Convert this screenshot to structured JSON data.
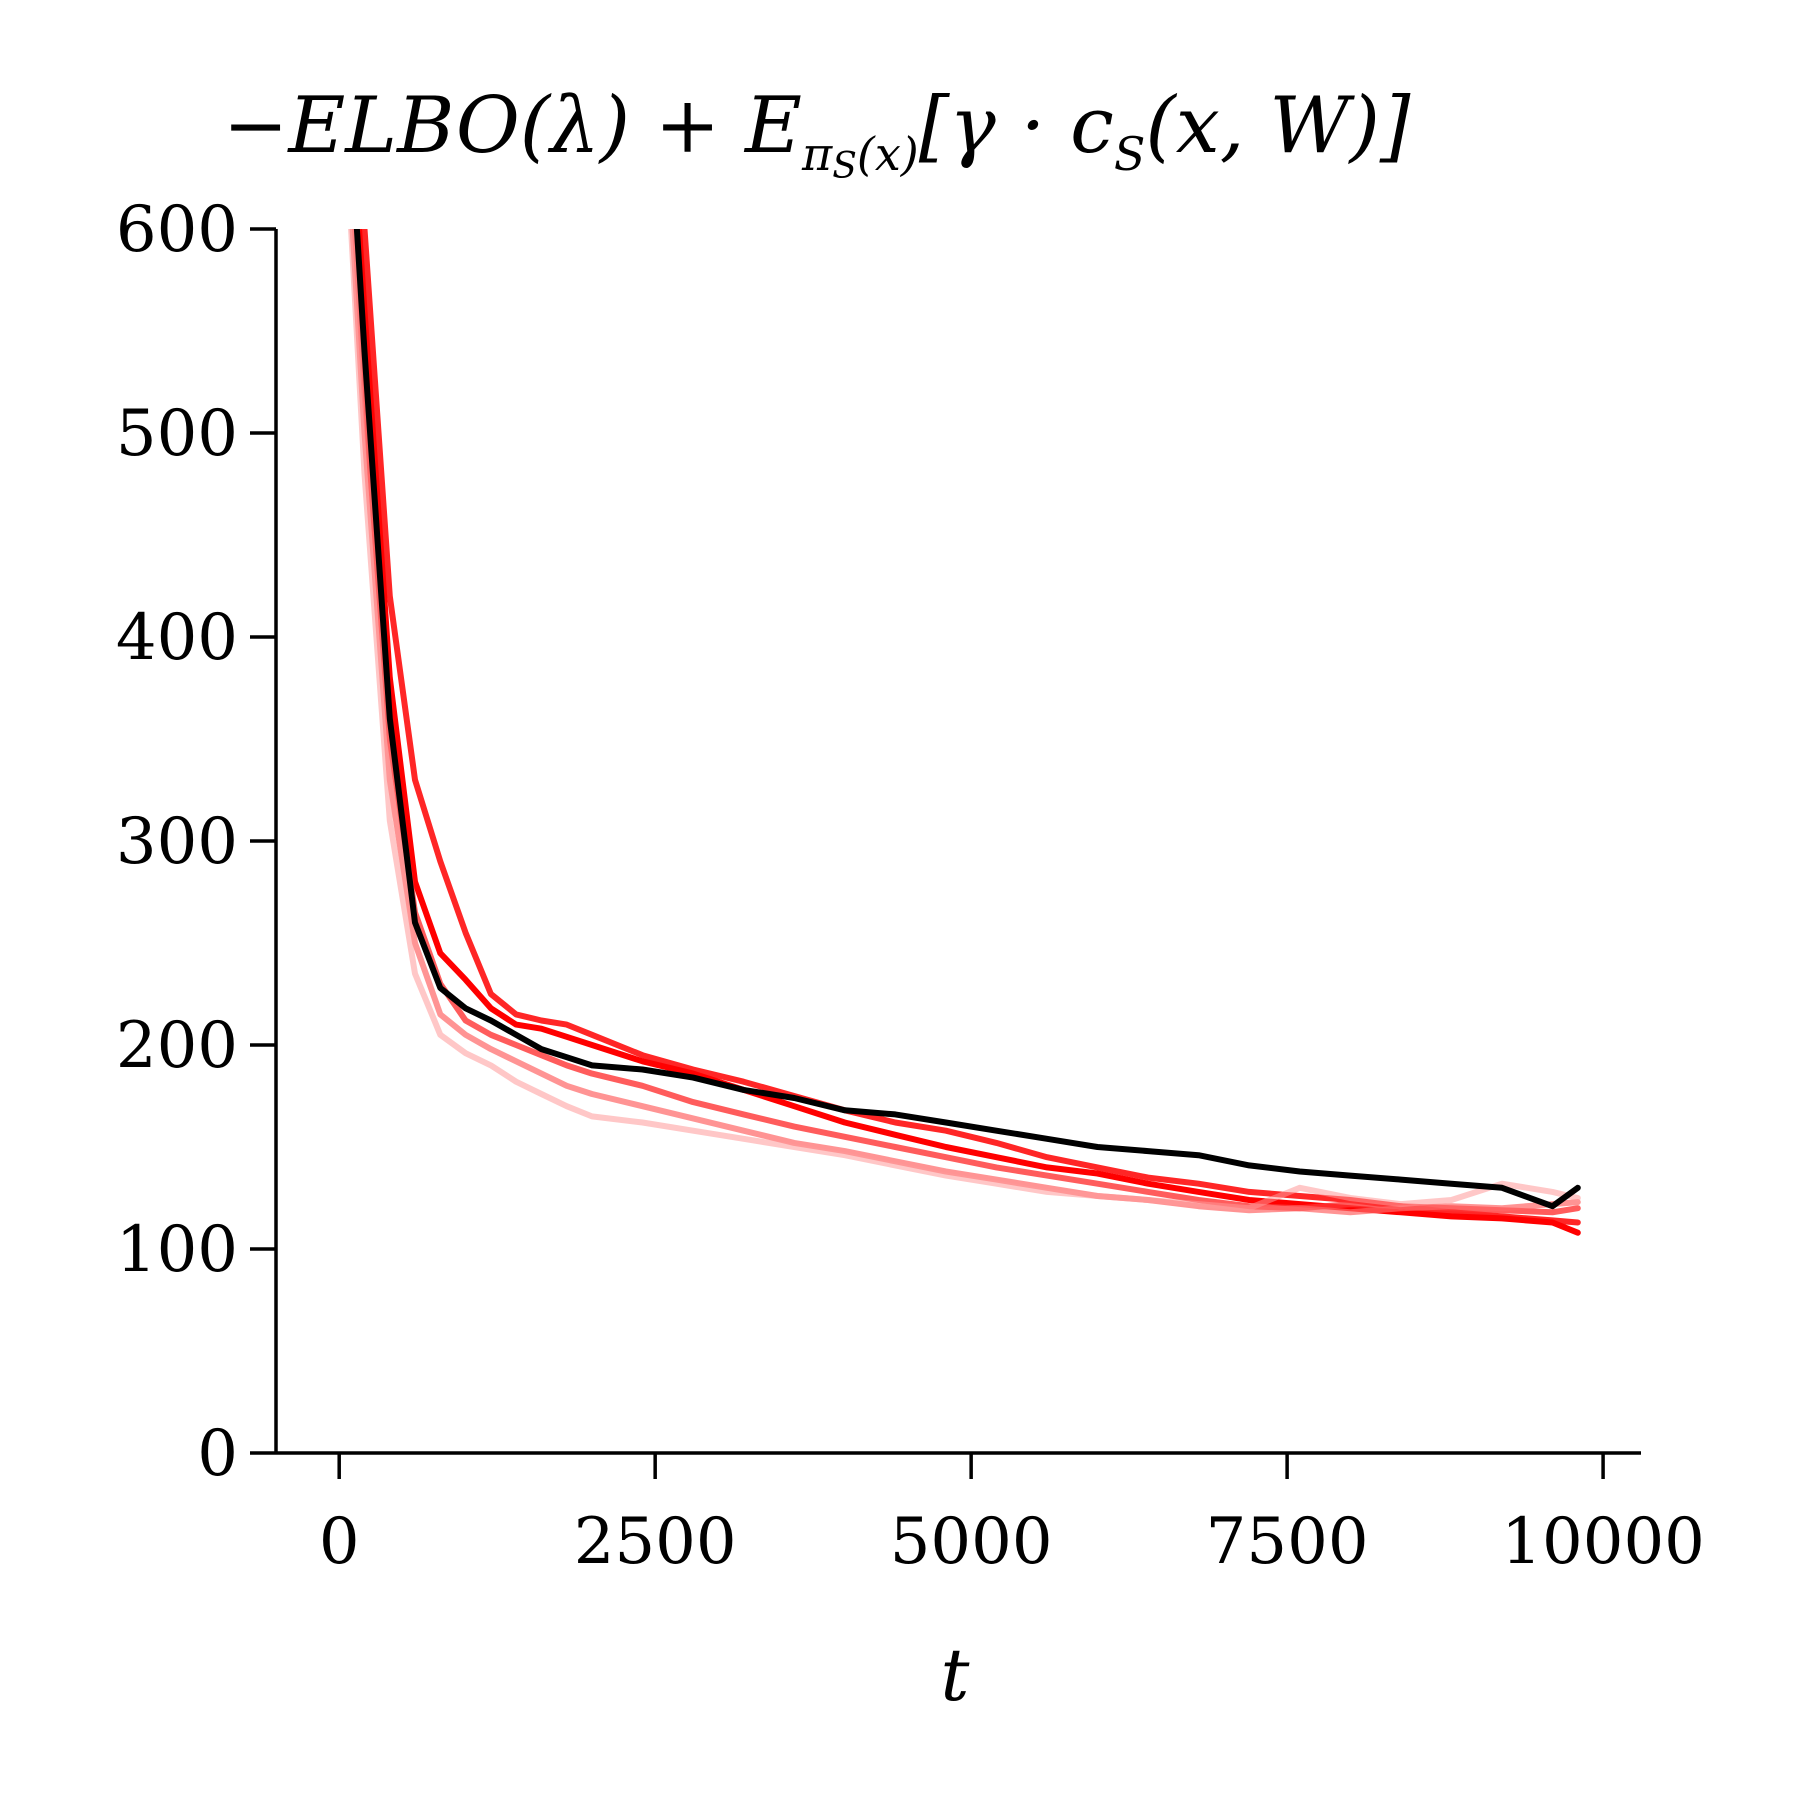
{
  "chart_data": {
    "type": "line",
    "title": "−ELBO(λ) + E_{π_S(x)}[γ · c_S(x, W)]",
    "title_parts": {
      "main1": "−ELBO(λ) + E",
      "sub": "π",
      "subsub": "S",
      "sub_tail": "(x)",
      "main2": "[γ · c",
      "sub2": "S",
      "main3": "(x, W)]"
    },
    "xlabel": "t",
    "ylabel": "",
    "xlim": [
      -500,
      10300
    ],
    "ylim": [
      0,
      600
    ],
    "xticks": [
      0,
      2500,
      5000,
      7500,
      10000
    ],
    "xtick_labels": [
      "0",
      "2500",
      "5000",
      "7500",
      "10000"
    ],
    "yticks": [
      0,
      100,
      200,
      300,
      400,
      500,
      600
    ],
    "ytick_labels": [
      "0",
      "100",
      "200",
      "300",
      "400",
      "500",
      "600"
    ],
    "grid": false,
    "legend": "none",
    "x": [
      50,
      200,
      400,
      600,
      800,
      1000,
      1200,
      1400,
      1600,
      1800,
      2000,
      2400,
      2800,
      3200,
      3600,
      4000,
      4400,
      4800,
      5200,
      5600,
      6000,
      6400,
      6800,
      7200,
      7600,
      8000,
      8400,
      8800,
      9200,
      9600,
      9800
    ],
    "series": [
      {
        "color": "#ff0000",
        "opacity": 0.85,
        "values": [
          720,
          600,
          420,
          330,
          290,
          255,
          225,
          215,
          212,
          210,
          205,
          195,
          188,
          182,
          175,
          168,
          162,
          158,
          152,
          145,
          140,
          135,
          132,
          128,
          126,
          124,
          121,
          118,
          116,
          114,
          113
        ]
      },
      {
        "color": "#ff0000",
        "opacity": 1.0,
        "values": [
          700,
          560,
          380,
          280,
          245,
          232,
          218,
          210,
          208,
          204,
          200,
          192,
          186,
          178,
          170,
          162,
          156,
          150,
          145,
          140,
          137,
          132,
          128,
          124,
          122,
          120,
          118,
          116,
          115,
          113,
          108
        ]
      },
      {
        "color": "#ff3333",
        "opacity": 0.8,
        "values": [
          680,
          520,
          350,
          265,
          230,
          212,
          205,
          200,
          195,
          190,
          186,
          180,
          172,
          166,
          160,
          155,
          150,
          145,
          140,
          136,
          132,
          128,
          124,
          121,
          120,
          122,
          121,
          120,
          119,
          118,
          120
        ]
      },
      {
        "color": "#ff6666",
        "opacity": 0.7,
        "values": [
          660,
          500,
          330,
          250,
          215,
          205,
          198,
          192,
          186,
          180,
          176,
          170,
          164,
          158,
          152,
          148,
          143,
          138,
          134,
          130,
          126,
          124,
          121,
          119,
          120,
          118,
          120,
          121,
          120,
          122,
          123
        ]
      },
      {
        "color": "#ff9999",
        "opacity": 0.55,
        "values": [
          650,
          480,
          310,
          235,
          205,
          196,
          190,
          182,
          176,
          170,
          165,
          162,
          158,
          154,
          150,
          146,
          141,
          136,
          132,
          128,
          126,
          124,
          122,
          120,
          130,
          125,
          122,
          124,
          132,
          128,
          125
        ]
      },
      {
        "color": "#000000",
        "opacity": 1.0,
        "values": [
          690,
          540,
          360,
          260,
          228,
          218,
          212,
          205,
          198,
          194,
          190,
          188,
          184,
          178,
          174,
          168,
          166,
          162,
          158,
          154,
          150,
          148,
          146,
          141,
          138,
          136,
          134,
          132,
          130,
          121,
          130
        ]
      }
    ]
  }
}
